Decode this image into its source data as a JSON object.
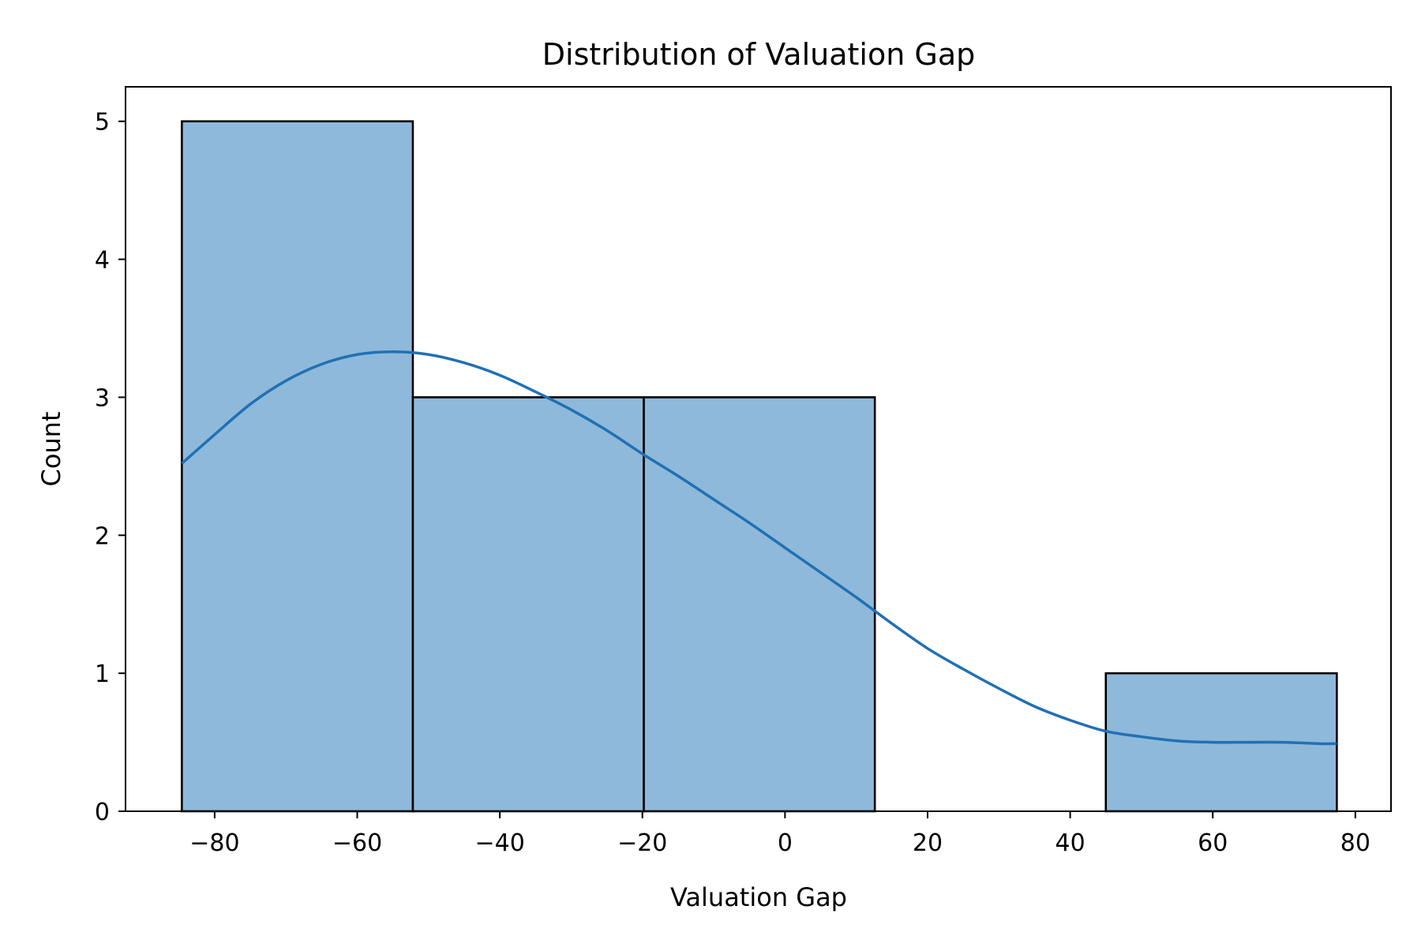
{
  "chart_data": {
    "type": "bar",
    "subtype": "histogram-with-kde",
    "title": "Distribution of Valuation Gap",
    "xlabel": "Valuation Gap",
    "ylabel": "Count",
    "xlim": [
      -92.5,
      85
    ],
    "ylim": [
      0,
      5.25
    ],
    "x_ticks": [
      -80,
      -60,
      -40,
      -20,
      0,
      20,
      40,
      60,
      80
    ],
    "x_tick_labels": [
      "−80",
      "−60",
      "−40",
      "−20",
      "0",
      "20",
      "40",
      "60",
      "80"
    ],
    "y_ticks": [
      0,
      1,
      2,
      3,
      4,
      5
    ],
    "y_tick_labels": [
      "0",
      "1",
      "2",
      "3",
      "4",
      "5"
    ],
    "bins": [
      {
        "x0": -84.6,
        "x1": -52.2,
        "count": 5
      },
      {
        "x0": -52.2,
        "x1": -19.8,
        "count": 3
      },
      {
        "x0": -19.8,
        "x1": 12.6,
        "count": 3
      },
      {
        "x0": 12.6,
        "x1": 45.0,
        "count": 0
      },
      {
        "x0": 45.0,
        "x1": 77.4,
        "count": 1
      }
    ],
    "kde": {
      "x": [
        -84.6,
        -80,
        -75,
        -70,
        -65,
        -60,
        -55,
        -50,
        -45,
        -40,
        -35,
        -30,
        -25,
        -20,
        -15,
        -10,
        -5,
        0,
        5,
        10,
        15,
        20,
        25,
        30,
        35,
        40,
        45,
        50,
        55,
        60,
        65,
        70,
        75,
        77.4
      ],
      "y": [
        2.52,
        2.73,
        2.95,
        3.12,
        3.24,
        3.31,
        3.33,
        3.31,
        3.25,
        3.16,
        3.04,
        2.91,
        2.76,
        2.59,
        2.43,
        2.26,
        2.09,
        1.91,
        1.73,
        1.55,
        1.36,
        1.18,
        1.03,
        0.89,
        0.76,
        0.66,
        0.58,
        0.54,
        0.51,
        0.5,
        0.5,
        0.5,
        0.49,
        0.49
      ]
    },
    "grid": false,
    "legend": "none",
    "colors": {
      "bar_fill": "#8eb9da",
      "bar_edge": "#000000",
      "kde_line": "#2170b4"
    }
  }
}
